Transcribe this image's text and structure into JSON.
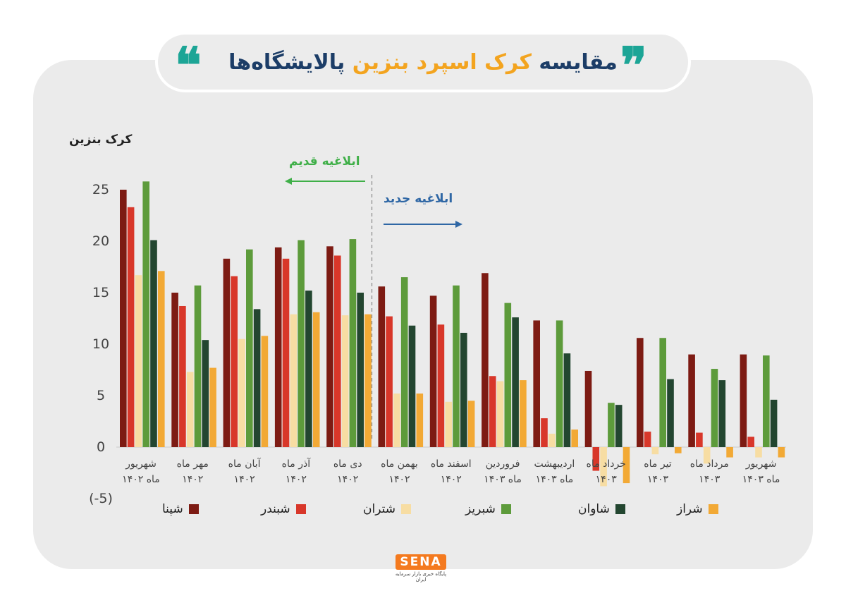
{
  "title": {
    "part1": "مقایسه ",
    "part2_accent": "کرک اسپرد بنزین",
    "part3": " پالایشگاه‌ها",
    "quote_left": "❝",
    "quote_right": "❞"
  },
  "annotations": {
    "old": "ابلاغیه قدیم",
    "new": "ابلاغیه جدید"
  },
  "logo": {
    "name": "SENA",
    "subtitle": "پایگاه خبری بازار سرمایه ایران"
  },
  "colors": {
    "shpna": "#7d1b13",
    "shbandar": "#d8372a",
    "shtran": "#f7dda3",
    "shabriz": "#5d9b3b",
    "shavan": "#234630",
    "shraz": "#f2a935",
    "background": "#ebebeb",
    "title": "#1c3d67",
    "title_accent": "#f3a41f",
    "quote": "#1ca596"
  },
  "chart_data": {
    "type": "bar",
    "ylabel": "کرک بنزین",
    "ylim": [
      -5,
      25
    ],
    "yticks": [
      "(-5)",
      "0",
      "5",
      "10",
      "15",
      "20",
      "25"
    ],
    "categories": [
      [
        "شهریور",
        "ماه ۱۴۰۲"
      ],
      [
        "مهر ماه",
        "۱۴۰۲"
      ],
      [
        "آبان ماه",
        "۱۴۰۲"
      ],
      [
        "آذر ماه",
        "۱۴۰۲"
      ],
      [
        "دی ماه",
        "۱۴۰۲"
      ],
      [
        "بهمن ماه",
        "۱۴۰۲"
      ],
      [
        "اسفند ماه",
        "۱۴۰۲"
      ],
      [
        "فروردین",
        "ماه ۱۴۰۳"
      ],
      [
        "اردیبهشت",
        "ماه ۱۴۰۳"
      ],
      [
        "خرداد ماه",
        "۱۴۰۳"
      ],
      [
        "تیر ماه",
        "۱۴۰۳"
      ],
      [
        "مرداد ماه",
        "۱۴۰۳"
      ],
      [
        "شهریور",
        "ماه ۱۴۰۳"
      ]
    ],
    "series": [
      {
        "name": "شپنا",
        "color_key": "shpna",
        "values": [
          25,
          15,
          18.3,
          19.4,
          19.5,
          15.6,
          14.7,
          16.9,
          12.3,
          7.4,
          10.6,
          9,
          9
        ]
      },
      {
        "name": "شبندر",
        "color_key": "shbandar",
        "values": [
          23.3,
          13.7,
          16.6,
          18.3,
          18.6,
          12.7,
          11.9,
          6.9,
          2.8,
          -2.3,
          1.5,
          1.4,
          1
        ]
      },
      {
        "name": "شتران",
        "color_key": "shtran",
        "values": [
          16.7,
          7.3,
          10.5,
          12.9,
          12.8,
          5.2,
          4.4,
          6.4,
          1.3,
          -3.8,
          -0.7,
          -1.6,
          -1
        ]
      },
      {
        "name": "شبریز",
        "color_key": "shabriz",
        "values": [
          25.8,
          15.7,
          19.2,
          20.1,
          20.2,
          16.5,
          15.7,
          14,
          12.3,
          4.3,
          10.6,
          7.6,
          8.9
        ]
      },
      {
        "name": "شاوان",
        "color_key": "shavan",
        "values": [
          20.1,
          10.4,
          13.4,
          15.2,
          15,
          11.8,
          11.1,
          12.6,
          9.1,
          4.1,
          6.6,
          6.5,
          4.6
        ]
      },
      {
        "name": "شراز",
        "color_key": "shraz",
        "values": [
          17.1,
          7.7,
          10.8,
          13.1,
          12.9,
          5.2,
          4.5,
          6.5,
          1.7,
          -3.5,
          -0.6,
          -1,
          -1
        ]
      }
    ],
    "divider_after_index": 4,
    "grid": false,
    "legend_position": "bottom"
  }
}
